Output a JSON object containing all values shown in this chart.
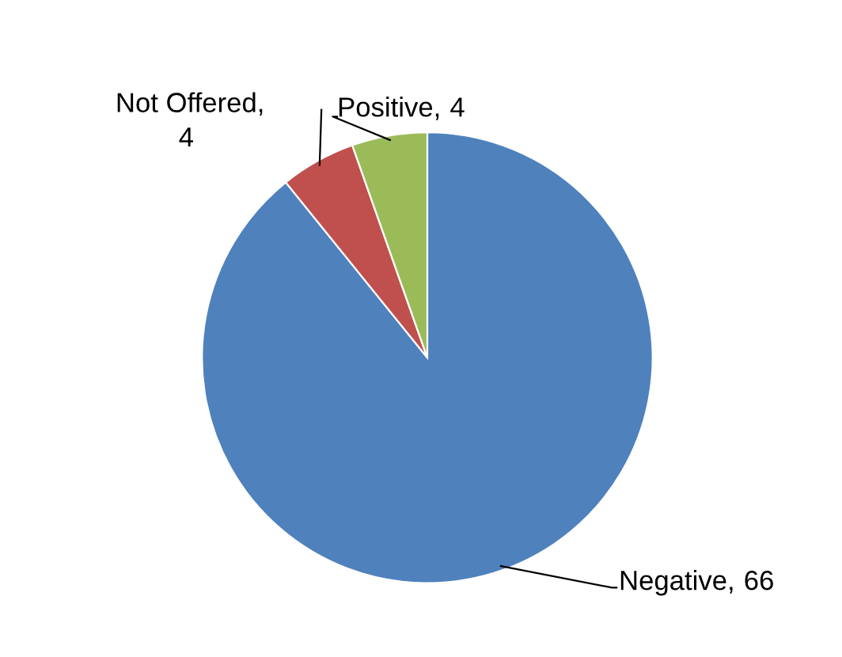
{
  "chart_data": {
    "type": "pie",
    "categories": [
      "Negative",
      "Not Offered",
      "Positive"
    ],
    "values": [
      66,
      4,
      4
    ],
    "colors": [
      "#4f81bd",
      "#c0504d",
      "#9bbb59"
    ],
    "data_labels": true,
    "annotations": [
      ",",
      ",",
      ","
    ],
    "legend": false
  }
}
